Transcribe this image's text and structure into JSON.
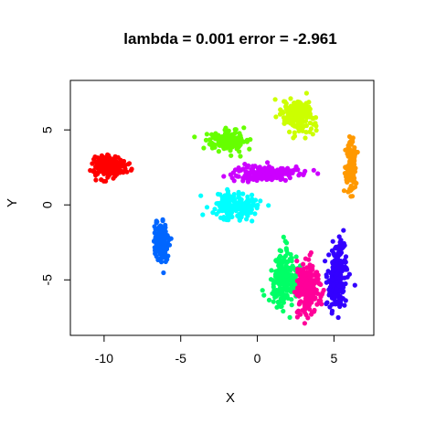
{
  "chart_data": {
    "type": "scatter",
    "title": "lambda = 0.001 error = -2.961",
    "xlabel": "X",
    "ylabel": "Y",
    "xlim": [
      -12.2,
      7.6
    ],
    "ylim": [
      -8.7,
      8.3
    ],
    "x_ticks": [
      -10,
      -5,
      0,
      5
    ],
    "x_tick_labels": [
      "-10",
      "-5",
      "0",
      "5"
    ],
    "y_ticks": [
      -5,
      0,
      5
    ],
    "y_tick_labels": [
      "-5",
      "0",
      "5"
    ],
    "grid": false,
    "legend": "none",
    "clusters": [
      {
        "color": "#ff0000",
        "center": [
          -9.6,
          2.6
        ],
        "spread": [
          0.9,
          0.6
        ],
        "n": 240
      },
      {
        "color": "#0066ff",
        "center": [
          -6.3,
          -2.5
        ],
        "spread": [
          0.45,
          1.1
        ],
        "n": 160
      },
      {
        "color": "#66ff00",
        "center": [
          -2.0,
          4.3
        ],
        "spread": [
          1.1,
          0.6
        ],
        "n": 170
      },
      {
        "color": "#cc00ff",
        "center": [
          0.6,
          2.1
        ],
        "spread": [
          1.9,
          0.45
        ],
        "n": 210
      },
      {
        "color": "#00ffff",
        "center": [
          -1.5,
          -0.1
        ],
        "spread": [
          1.4,
          0.9
        ],
        "n": 170
      },
      {
        "color": "#ccff00",
        "center": [
          2.7,
          5.9
        ],
        "spread": [
          1.0,
          0.9
        ],
        "n": 190
      },
      {
        "color": "#ff9900",
        "center": [
          6.1,
          2.6
        ],
        "spread": [
          0.3,
          1.5
        ],
        "n": 150
      },
      {
        "color": "#00ff66",
        "center": [
          1.8,
          -4.9
        ],
        "spread": [
          0.9,
          1.5
        ],
        "n": 230
      },
      {
        "color": "#ff0099",
        "center": [
          3.3,
          -5.6
        ],
        "spread": [
          0.7,
          1.5
        ],
        "n": 210
      },
      {
        "color": "#3300ff",
        "center": [
          5.2,
          -4.8
        ],
        "spread": [
          0.6,
          1.7
        ],
        "n": 230
      }
    ]
  }
}
